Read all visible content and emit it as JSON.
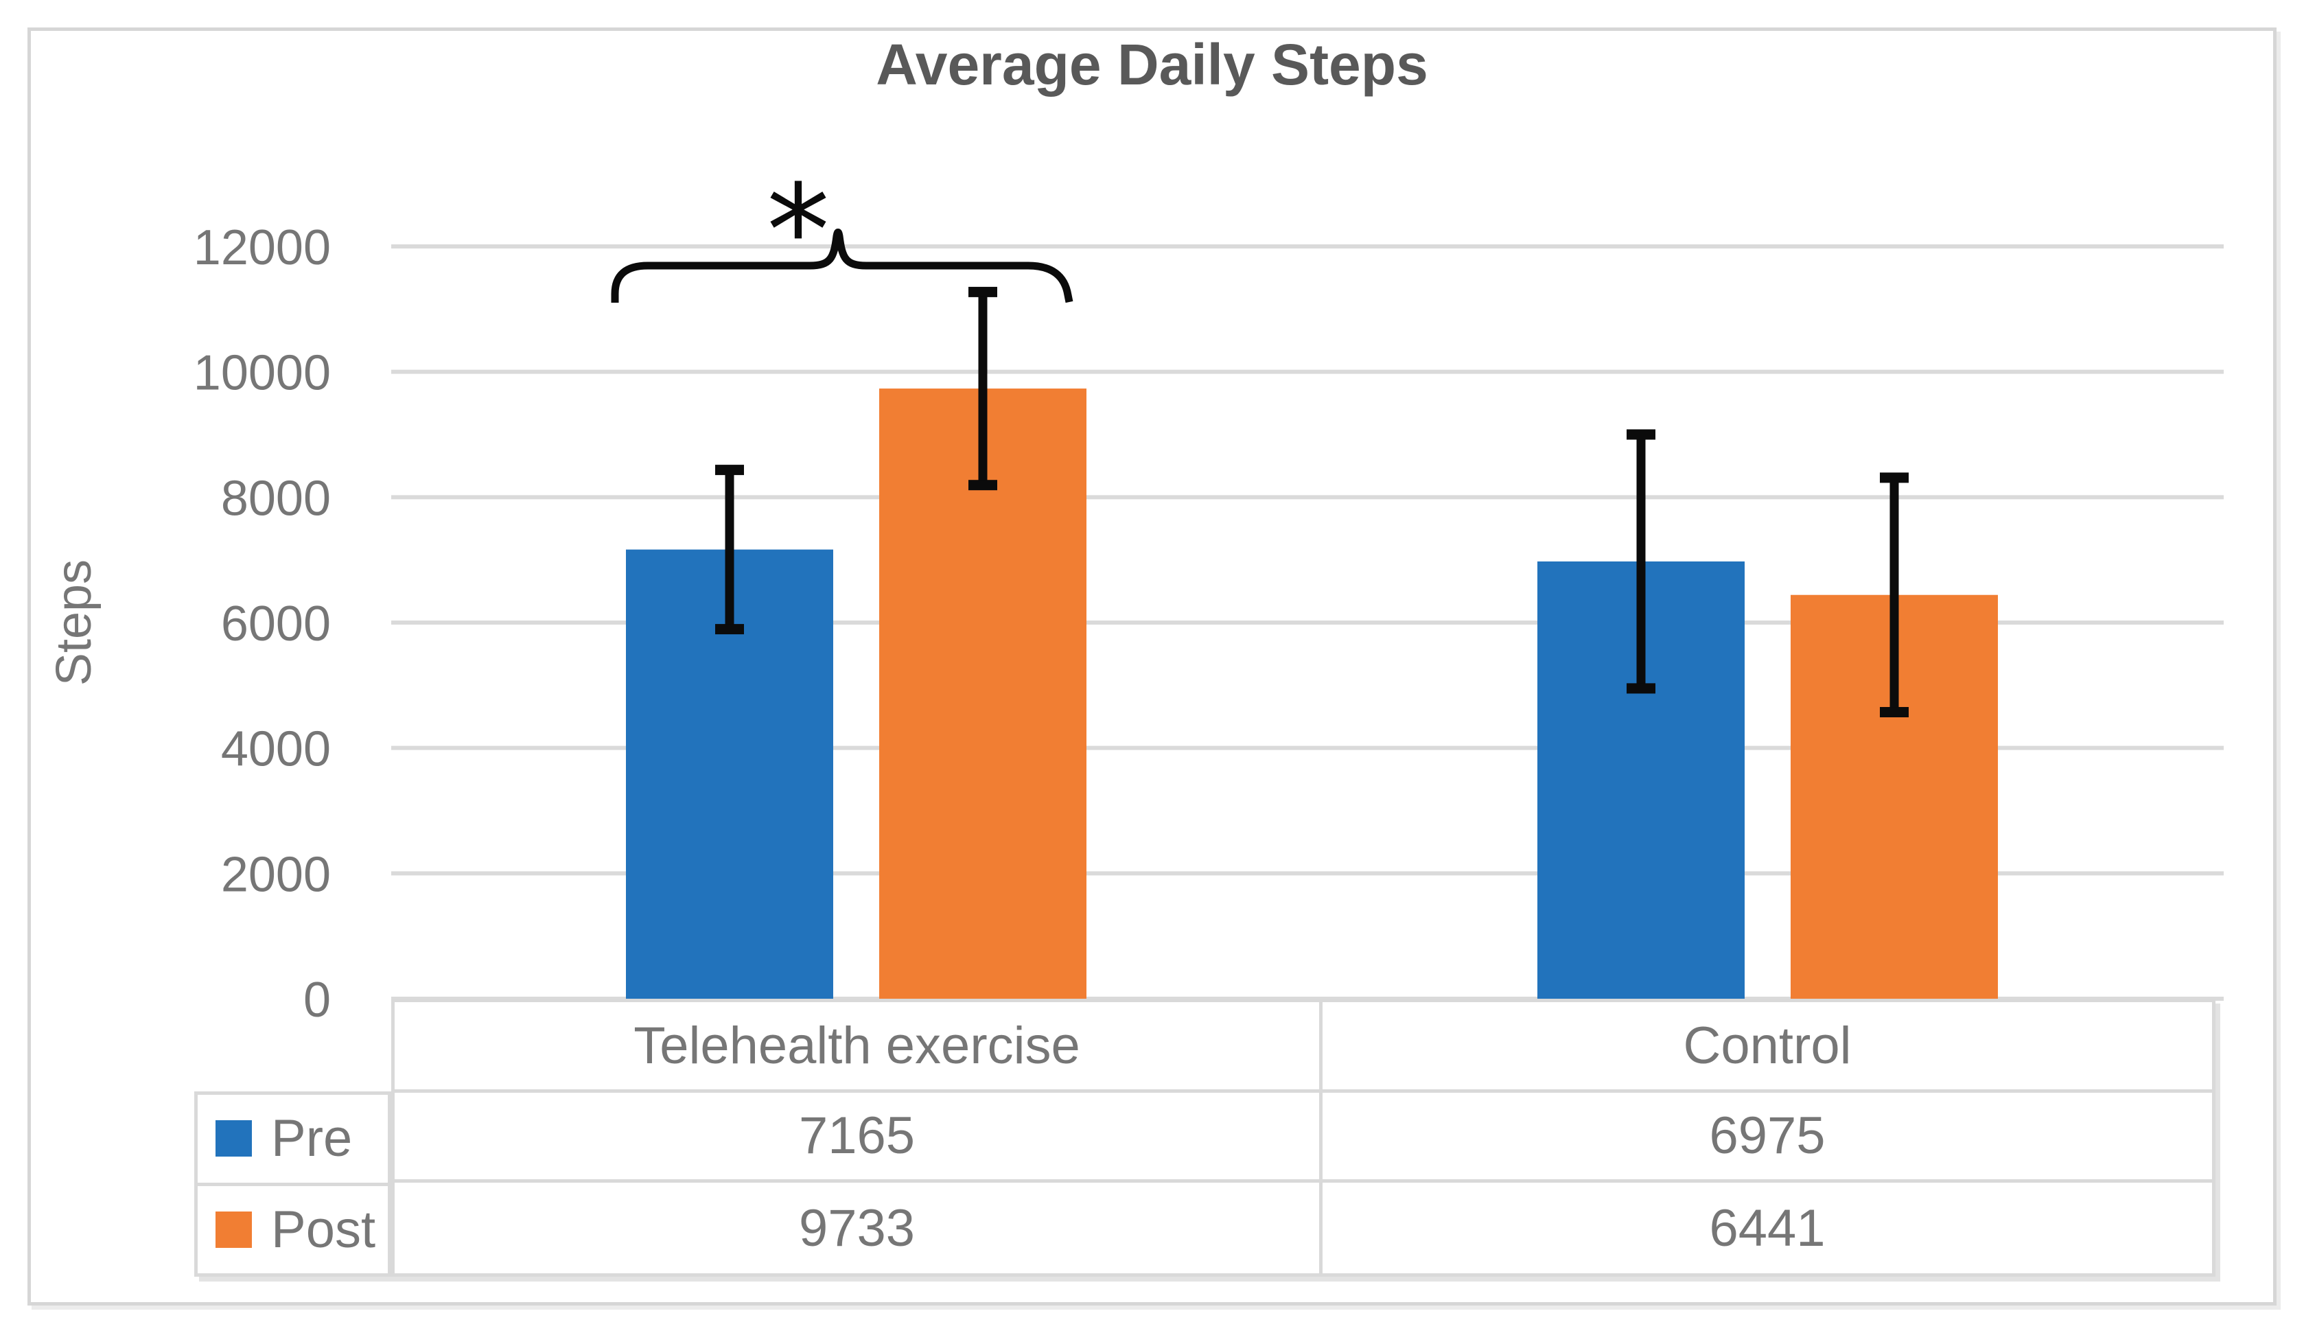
{
  "chart_data": {
    "type": "bar",
    "title": "Average Daily Steps",
    "xlabel": "",
    "ylabel": "Steps",
    "categories": [
      "Telehealth exercise",
      "Control"
    ],
    "series": [
      {
        "name": "Pre",
        "color": "#2273BC",
        "values": [
          7165,
          6975
        ],
        "errors": [
          1270,
          2025
        ]
      },
      {
        "name": "Post",
        "color": "#F17E33",
        "values": [
          9733,
          6441
        ],
        "errors": [
          1540,
          1870
        ]
      }
    ],
    "ylim": [
      0,
      12000
    ],
    "yticks": [
      0,
      2000,
      4000,
      6000,
      8000,
      10000,
      12000
    ],
    "grid": true,
    "legend_position": "table-left",
    "annotation": {
      "type": "significance-bracket",
      "symbol": "*",
      "over_category": "Telehealth exercise",
      "between": [
        "Pre",
        "Post"
      ]
    }
  },
  "table": {
    "column_headers": [
      "Telehealth exercise",
      "Control"
    ],
    "rows": [
      {
        "label": "Pre",
        "swatch_color": "#2273BC",
        "values": [
          "7165",
          "6975"
        ]
      },
      {
        "label": "Post",
        "swatch_color": "#F17E33",
        "values": [
          "9733",
          "6441"
        ]
      }
    ]
  },
  "colors": {
    "grid_line": "#dadada",
    "axis_text": "#767676",
    "title_text": "#595959",
    "table_border": "#d9d9d9",
    "error_bar": "#0b0b0b",
    "frame_border": "#d6d6d6"
  }
}
